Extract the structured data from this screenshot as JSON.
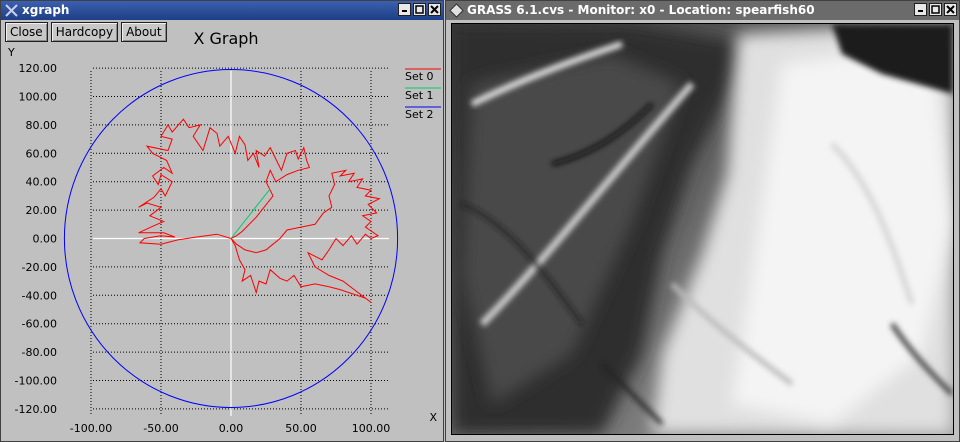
{
  "xgraph": {
    "title": "xgraph",
    "buttons": {
      "close": "Close",
      "hardcopy": "Hardcopy",
      "about": "About"
    },
    "graph_title": "X Graph",
    "legend": [
      {
        "label": "Set 0",
        "color": "#ff0000"
      },
      {
        "label": "Set 1",
        "color": "#00cc66"
      },
      {
        "label": "Set 2",
        "color": "#0000ff"
      }
    ]
  },
  "chart_data": {
    "type": "line",
    "title": "X Graph",
    "xlabel": "X",
    "ylabel": "Y",
    "xlim": [
      -120,
      120
    ],
    "ylim": [
      -125,
      125
    ],
    "grid": true,
    "legend_position": "top-right",
    "xticks": [
      -100,
      -50,
      0,
      50,
      100
    ],
    "xtick_labels": [
      "-100.00",
      "-50.00",
      "0.00",
      "50.00",
      "100.00"
    ],
    "yticks": [
      120,
      100,
      80,
      60,
      40,
      20,
      0,
      -20,
      -40,
      -60,
      -80,
      -100,
      -120
    ],
    "ytick_labels": [
      "120.00",
      "100.00",
      "80.00",
      "60.00",
      "40.00",
      "20.00",
      "0.00",
      "-20.00",
      "-40.00",
      "-60.00",
      "-80.00",
      "-100.00",
      "-120.00"
    ],
    "series": [
      {
        "name": "Set 0",
        "color": "#ff0000",
        "points": [
          [
            0,
            0
          ],
          [
            -10,
            3
          ],
          [
            -25,
            1
          ],
          [
            -38,
            -1
          ],
          [
            -50,
            -4
          ],
          [
            -65,
            -3
          ],
          [
            -62,
            0
          ],
          [
            -50,
            2
          ],
          [
            -40,
            1
          ],
          [
            -48,
            4
          ],
          [
            -66,
            4
          ],
          [
            -55,
            9
          ],
          [
            -48,
            12
          ],
          [
            -58,
            16
          ],
          [
            -50,
            22
          ],
          [
            -60,
            25
          ],
          [
            -66,
            22
          ],
          [
            -55,
            29
          ],
          [
            -50,
            35
          ],
          [
            -47,
            30
          ],
          [
            -42,
            40
          ],
          [
            -50,
            45
          ],
          [
            -52,
            38
          ],
          [
            -56,
            44
          ],
          [
            -48,
            50
          ],
          [
            -42,
            46
          ],
          [
            -46,
            55
          ],
          [
            -56,
            60
          ],
          [
            -60,
            65
          ],
          [
            -45,
            62
          ],
          [
            -42,
            70
          ],
          [
            -50,
            72
          ],
          [
            -45,
            80
          ],
          [
            -42,
            75
          ],
          [
            -34,
            84
          ],
          [
            -30,
            78
          ],
          [
            -22,
            80
          ],
          [
            -27,
            72
          ],
          [
            -20,
            62
          ],
          [
            -15,
            78
          ],
          [
            -10,
            74
          ],
          [
            -8,
            65
          ],
          [
            -2,
            72
          ],
          [
            3,
            60
          ],
          [
            6,
            72
          ],
          [
            10,
            66
          ],
          [
            12,
            55
          ],
          [
            16,
            60
          ],
          [
            20,
            50
          ],
          [
            18,
            62
          ],
          [
            24,
            58
          ],
          [
            28,
            64
          ],
          [
            32,
            56
          ],
          [
            36,
            48
          ],
          [
            40,
            60
          ],
          [
            46,
            62
          ],
          [
            48,
            56
          ],
          [
            52,
            64
          ],
          [
            54,
            55
          ],
          [
            56,
            50
          ],
          [
            48,
            48
          ],
          [
            40,
            45
          ],
          [
            32,
            40
          ],
          [
            28,
            48
          ],
          [
            25,
            40
          ],
          [
            30,
            30
          ],
          [
            18,
            15
          ],
          [
            8,
            5
          ],
          [
            4,
            2
          ],
          [
            0,
            0
          ],
          [
            0,
            0
          ],
          [
            3,
            -5
          ],
          [
            6,
            -15
          ],
          [
            10,
            -22
          ],
          [
            8,
            -30
          ],
          [
            14,
            -26
          ],
          [
            18,
            -38
          ],
          [
            20,
            -30
          ],
          [
            25,
            -32
          ],
          [
            28,
            -22
          ],
          [
            35,
            -28
          ],
          [
            40,
            -30
          ],
          [
            45,
            -26
          ],
          [
            50,
            -34
          ],
          [
            60,
            -32
          ],
          [
            70,
            -34
          ],
          [
            78,
            -36
          ],
          [
            84,
            -38
          ],
          [
            90,
            -40
          ],
          [
            96,
            -42
          ],
          [
            100,
            -45
          ],
          [
            88,
            -36
          ],
          [
            80,
            -30
          ],
          [
            70,
            -26
          ],
          [
            60,
            -20
          ],
          [
            55,
            -10
          ],
          [
            65,
            -15
          ],
          [
            70,
            -8
          ],
          [
            75,
            0
          ],
          [
            80,
            -5
          ],
          [
            86,
            2
          ],
          [
            90,
            -4
          ],
          [
            96,
            3
          ],
          [
            100,
            0
          ],
          [
            105,
            2
          ],
          [
            96,
            8
          ],
          [
            100,
            12
          ],
          [
            94,
            16
          ],
          [
            104,
            18
          ],
          [
            98,
            24
          ],
          [
            106,
            28
          ],
          [
            96,
            30
          ],
          [
            100,
            34
          ],
          [
            90,
            36
          ],
          [
            94,
            42
          ],
          [
            84,
            40
          ],
          [
            88,
            46
          ],
          [
            78,
            44
          ],
          [
            82,
            48
          ],
          [
            72,
            46
          ],
          [
            74,
            38
          ],
          [
            70,
            30
          ],
          [
            72,
            22
          ],
          [
            66,
            18
          ],
          [
            60,
            10
          ],
          [
            50,
            8
          ],
          [
            40,
            6
          ],
          [
            35,
            0
          ],
          [
            30,
            -4
          ],
          [
            25,
            -8
          ],
          [
            18,
            -10
          ],
          [
            10,
            -8
          ],
          [
            4,
            -4
          ],
          [
            0,
            0
          ]
        ]
      },
      {
        "name": "Set 1",
        "color": "#00cc66",
        "points": [
          [
            0,
            0
          ],
          [
            28,
            35
          ]
        ]
      },
      {
        "name": "Set 2",
        "color": "#0000ff",
        "shape": "circle",
        "center": [
          0,
          0
        ],
        "radius": 119
      }
    ]
  },
  "grass": {
    "title": "GRASS 6.1.cvs - Monitor: x0 - Location: spearfish60"
  }
}
